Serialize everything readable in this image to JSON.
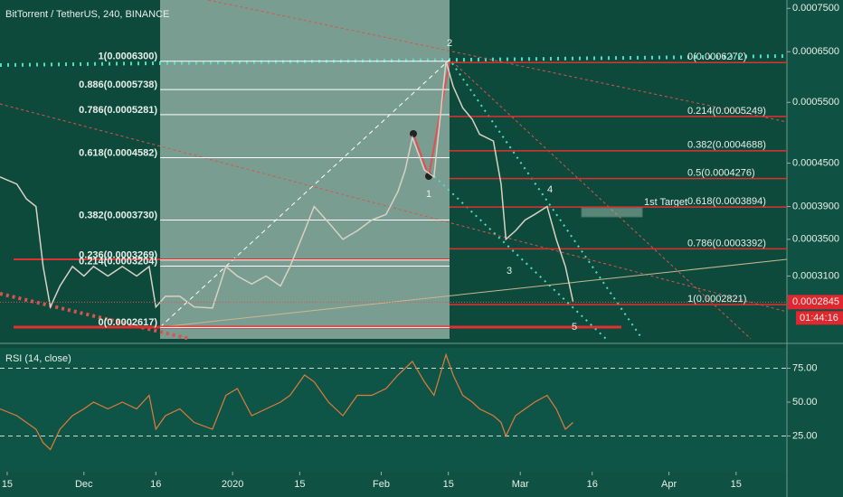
{
  "chart_data": [
    {
      "type": "line",
      "title": "BitTorrent / TetherUS, 240, BINANCE",
      "log_scale": true,
      "x": [
        -1.5,
        2,
        4,
        6,
        7.5,
        9,
        11,
        13.6,
        16,
        18,
        21,
        24,
        27,
        29.6,
        31,
        33,
        36,
        39,
        42.8,
        45.6,
        48,
        51,
        54,
        57,
        59,
        62,
        64,
        67,
        70,
        73,
        76,
        79,
        81.5,
        83,
        84.5,
        87,
        89,
        91.5,
        93,
        95,
        97,
        98.5,
        101.4,
        103,
        104,
        106,
        108,
        110,
        112.6,
        114.5,
        116.4,
        118
      ],
      "values": [
        0.00043,
        0.00042,
        0.0004,
        0.00039,
        0.00032,
        0.00028,
        0.0003,
        0.00032,
        0.00031,
        0.00032,
        0.00031,
        0.00032,
        0.00031,
        0.00032,
        0.00028,
        0.00029,
        0.00029,
        0.00028,
        0.000279,
        0.00032,
        0.00031,
        0.000302,
        0.00031,
        0.0003,
        0.00032,
        0.00036,
        0.00039,
        0.00037,
        0.00035,
        0.00036,
        0.000373,
        0.00038,
        0.00041,
        0.00044,
        0.00049,
        0.00044,
        0.00043,
        0.00063,
        0.00058,
        0.00054,
        0.00052,
        0.000495,
        0.000484,
        0.00042,
        0.00035,
        0.00036,
        0.000373,
        0.00038,
        0.00039,
        0.00035,
        0.00032,
        0.000285
      ],
      "color": "#d8d2c4",
      "xlim": [
        -1.5,
        162.6
      ],
      "ylim": [
        0.000252,
        0.000771
      ],
      "yticks": [
        {
          "value": 0.00075,
          "label": "0.0007500"
        },
        {
          "value": 0.00065,
          "label": "0.0006500"
        },
        {
          "value": 0.00055,
          "label": "0.0005500"
        },
        {
          "value": 0.00045,
          "label": "0.0004500"
        },
        {
          "value": 0.00039,
          "label": "0.0003900"
        },
        {
          "value": 0.00035,
          "label": "0.0003500"
        },
        {
          "value": 0.00031,
          "label": "0.0003100"
        }
      ],
      "last_price": {
        "value": 0.0002845,
        "label": "0.0002845"
      },
      "countdown": "01:44:16",
      "fib_left": [
        {
          "label": "1(0.0006300)",
          "value": 0.00063
        },
        {
          "label": "0.886(0.0005738)",
          "value": 0.0005738
        },
        {
          "label": "0.786(0.0005281)",
          "value": 0.0005281
        },
        {
          "label": "0.618(0.0004582)",
          "value": 0.0004582
        },
        {
          "label": "0.382(0.0003730)",
          "value": 0.000373
        },
        {
          "label": "0.236(0.0003269)",
          "value": 0.0003269
        },
        {
          "label": "0.214(0.0003204)",
          "value": 0.0003204
        },
        {
          "label": "0(0.0002617)",
          "value": 0.0002617
        }
      ],
      "fib_right": [
        {
          "label": "0(0.0006272)",
          "value": 0.0006272
        },
        {
          "label": "0.214(0.0005249)",
          "value": 0.0005249
        },
        {
          "label": "0.382(0.0004688)",
          "value": 0.0004688
        },
        {
          "label": "0.5(0.0004276)",
          "value": 0.0004276
        },
        {
          "label": "0.618(0.0003894)",
          "value": 0.0003894
        },
        {
          "label": "0.786(0.0003392)",
          "value": 0.0003392
        },
        {
          "label": "1(0.0002821)",
          "value": 0.0002821
        }
      ],
      "waves": [
        "2",
        "1",
        "3",
        "4",
        "5"
      ],
      "target_label": "1st Target"
    },
    {
      "type": "line",
      "title": "RSI (14, close)",
      "x": [
        -1.5,
        2,
        4,
        6,
        7.5,
        9,
        11,
        13.6,
        16,
        18,
        21,
        24,
        27,
        29.6,
        31,
        33,
        36,
        39,
        42.8,
        45.6,
        48,
        51,
        54,
        57,
        59,
        62,
        64,
        67,
        70,
        73,
        76,
        79,
        81.5,
        83,
        84.5,
        87,
        89,
        91.5,
        93,
        95,
        97,
        98.5,
        101.4,
        103,
        104,
        106,
        108,
        110,
        112.6,
        114.5,
        116.4,
        118
      ],
      "values": [
        45,
        40,
        35,
        30,
        20,
        15,
        30,
        40,
        45,
        50,
        45,
        50,
        45,
        55,
        30,
        40,
        45,
        35,
        30,
        55,
        60,
        40,
        45,
        50,
        55,
        70,
        65,
        50,
        40,
        55,
        55,
        60,
        70,
        75,
        80,
        65,
        55,
        85,
        70,
        55,
        50,
        45,
        40,
        35,
        25,
        40,
        45,
        50,
        55,
        45,
        30,
        35
      ],
      "color": "#e07b39",
      "xlim": [
        -1.5,
        162.6
      ],
      "ylim": [
        0,
        90
      ],
      "yticks": [
        {
          "value": 75,
          "label": "75.00"
        },
        {
          "value": 50,
          "label": "50.00"
        },
        {
          "value": 25,
          "label": "25.00"
        }
      ],
      "bands": [
        75,
        25
      ],
      "xticks": [
        {
          "value": 0,
          "label": "15"
        },
        {
          "value": 16,
          "label": "Dec"
        },
        {
          "value": 31,
          "label": "16"
        },
        {
          "value": 47,
          "label": "2020"
        },
        {
          "value": 61,
          "label": "15"
        },
        {
          "value": 78,
          "label": "Feb"
        },
        {
          "value": 92,
          "label": "15"
        },
        {
          "value": 107,
          "label": "Mar"
        },
        {
          "value": 122,
          "label": "16"
        },
        {
          "value": 138,
          "label": "Apr"
        },
        {
          "value": 152,
          "label": "15"
        }
      ]
    }
  ]
}
